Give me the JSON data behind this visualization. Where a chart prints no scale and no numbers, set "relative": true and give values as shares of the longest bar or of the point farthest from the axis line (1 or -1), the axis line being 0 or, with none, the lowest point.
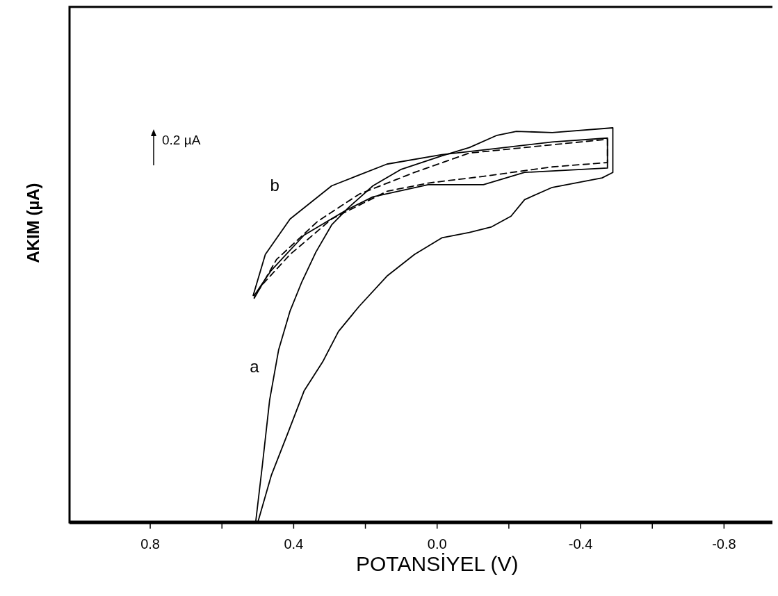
{
  "chart_data": {
    "type": "line",
    "relative": true,
    "xlabel": "POTANSİYEL (V)",
    "ylabel": "AKIM (µA)",
    "annotations": [
      "0.2 µA"
    ],
    "xlim": [
      1.025,
      -0.935
    ],
    "xticks": [
      {
        "value": 0.8,
        "label": "0.8"
      },
      {
        "value": 0.6,
        "label": null
      },
      {
        "value": 0.4,
        "label": "0.4"
      },
      {
        "value": 0.2,
        "label": null
      },
      {
        "value": 0,
        "label": "0.0"
      },
      {
        "value": -0.2,
        "label": null
      },
      {
        "value": -0.4,
        "label": "-0.4"
      },
      {
        "value": -0.6,
        "label": null
      },
      {
        "value": -0.8,
        "label": "-0.8"
      }
    ],
    "tick_labels": "x",
    "series": [
      {
        "name": "a",
        "color": "#000000",
        "line_style": "solid",
        "x": [
          0.506,
          0.487,
          0.467,
          0.442,
          0.41,
          0.377,
          0.338,
          0.294,
          0.248,
          0.179,
          0.102,
          -0.013,
          -0.09,
          -0.167,
          -0.221,
          -0.321,
          -0.49,
          -0.49,
          -0.46,
          -0.321,
          -0.244,
          -0.206,
          -0.152,
          -0.09,
          -0.013,
          0.063,
          0.14,
          0.217,
          0.275,
          0.319,
          0.371,
          0.415,
          0.462,
          0.5
        ],
        "values": [
          0,
          0.147,
          0.31,
          0.437,
          0.536,
          0.61,
          0.685,
          0.754,
          0.797,
          0.853,
          0.894,
          0.929,
          0.95,
          0.981,
          0.991,
          0.988,
          1,
          0.887,
          0.873,
          0.849,
          0.818,
          0.776,
          0.749,
          0.735,
          0.721,
          0.679,
          0.624,
          0.548,
          0.484,
          0.407,
          0.333,
          0.229,
          0.12,
          0
        ]
      },
      {
        "name": "b",
        "color": "#000000",
        "line_style": "solid",
        "x": [
          0.513,
          0.479,
          0.41,
          0.294,
          0.14,
          -0.013,
          -0.167,
          -0.321,
          -0.475,
          -0.475,
          -0.244,
          -0.129,
          0.025,
          0.179,
          0.256,
          0.371,
          0.463,
          0.51
        ],
        "values": [
          0.575,
          0.679,
          0.769,
          0.853,
          0.908,
          0.932,
          0.948,
          0.964,
          0.974,
          0.898,
          0.887,
          0.856,
          0.856,
          0.825,
          0.79,
          0.728,
          0.638,
          0.575
        ]
      },
      {
        "color": "#000000",
        "line_style": "dashed",
        "x": [
          0.51,
          0.448,
          0.333,
          0.217,
          0.063,
          -0.09,
          -0.321,
          -0.475,
          -0.475,
          -0.321,
          -0.129,
          0.025,
          0.14,
          0.294,
          0.41,
          0.487,
          0.51
        ],
        "values": [
          0.568,
          0.666,
          0.763,
          0.832,
          0.887,
          0.936,
          0.957,
          0.971,
          0.912,
          0.901,
          0.877,
          0.86,
          0.839,
          0.769,
          0.679,
          0.603,
          0.57
        ]
      }
    ]
  }
}
